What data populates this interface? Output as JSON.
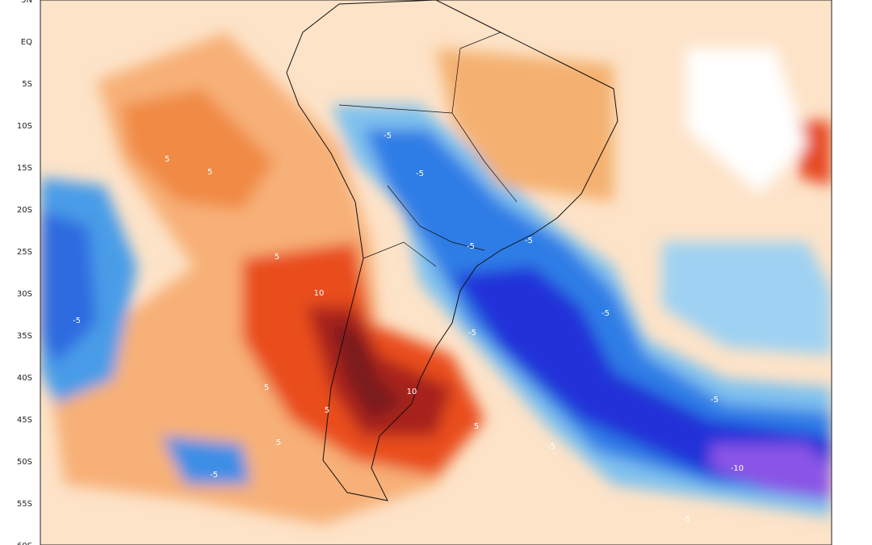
{
  "lat_labels": [
    "5N",
    "EQ",
    "5S",
    "10S",
    "15S",
    "20S",
    "25S",
    "30S",
    "35S",
    "40S",
    "45S",
    "50S",
    "55S",
    "60S"
  ],
  "contour_labels": [
    "5",
    "5",
    "5",
    "5",
    "5",
    "5",
    "5",
    "-5",
    "-5",
    "-5",
    "-5",
    "-5",
    "-5",
    "-5",
    "-5",
    "-5",
    "-5",
    "-5",
    "10",
    "10",
    "-10"
  ]
}
